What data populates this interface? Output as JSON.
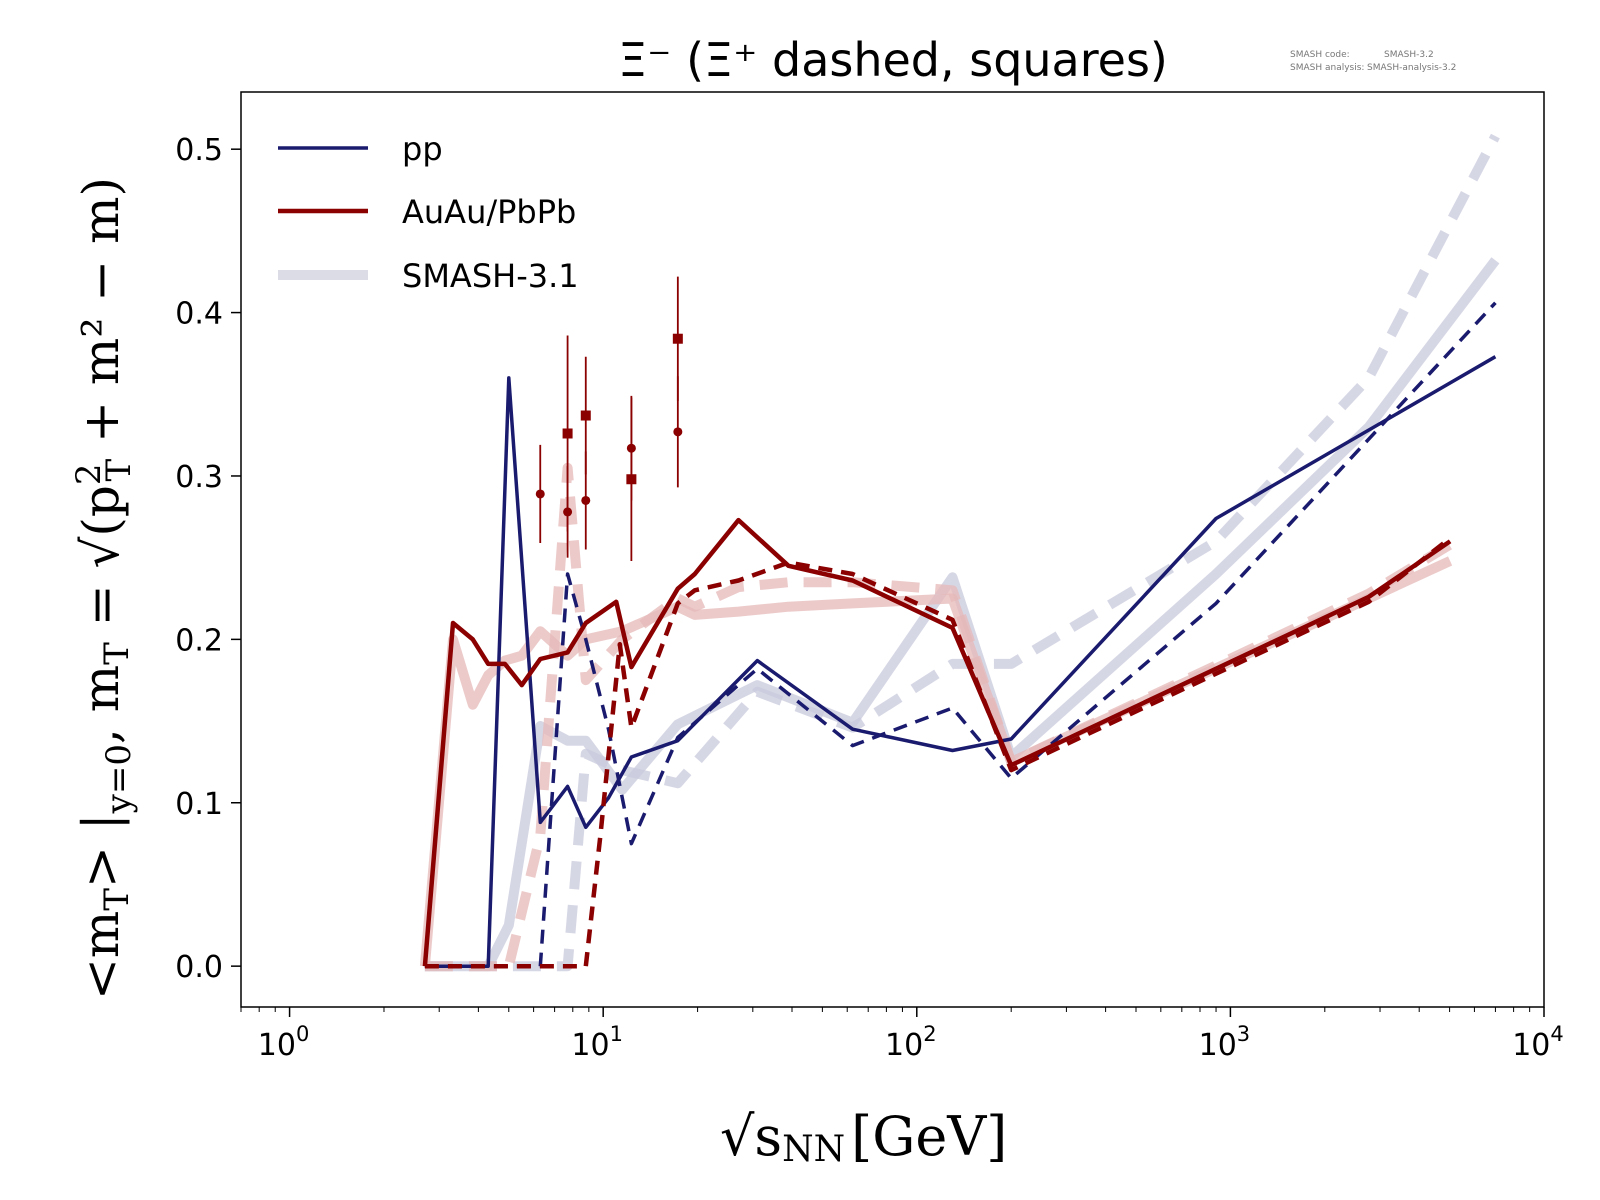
{
  "chart_data": {
    "type": "line",
    "title": "Ξ⁻ (Ξ⁺ dashed, squares)",
    "xlabel": {
      "main": "√s",
      "sub": "NN",
      "unit": "[GeV]"
    },
    "ylabel": {
      "main": "<m",
      "sub": "T",
      "rest": "> |",
      "sub2": "y=0",
      "def": ", m",
      "sub3": "T",
      "eq": " = √(p",
      "sup4": "2",
      "sub4": "T",
      "end": " + m² − m)"
    },
    "x_scale": "log",
    "xlim": [
      0.7,
      10000
    ],
    "ylim": [
      -0.025,
      0.535
    ],
    "x_ticks": [
      {
        "value": 1,
        "base": "10",
        "exp": "0"
      },
      {
        "value": 10,
        "base": "10",
        "exp": "1"
      },
      {
        "value": 100,
        "base": "10",
        "exp": "2"
      },
      {
        "value": 1000,
        "base": "10",
        "exp": "3"
      },
      {
        "value": 10000,
        "base": "10",
        "exp": "4"
      }
    ],
    "y_ticks": [
      {
        "value": 0.0,
        "label": "0.0"
      },
      {
        "value": 0.1,
        "label": "0.1"
      },
      {
        "value": 0.2,
        "label": "0.2"
      },
      {
        "value": 0.3,
        "label": "0.3"
      },
      {
        "value": 0.4,
        "label": "0.4"
      },
      {
        "value": 0.5,
        "label": "0.5"
      }
    ],
    "grid": false,
    "legend_position": "top-left",
    "legend": [
      {
        "label": "pp",
        "color": "#1a1a6e",
        "style": "solid"
      },
      {
        "label": "AuAu/PbPb",
        "color": "#8b0000",
        "style": "solid"
      },
      {
        "label": "SMASH-3.1",
        "color": "#dcdce6",
        "style": "thick-solid"
      }
    ],
    "colors": {
      "pp": "#1a1a6e",
      "aa": "#8b0000",
      "smash_pp": "#c8c9dc",
      "smash_aa": "#e6b8b8",
      "marker": "#8b0000"
    },
    "series": [
      {
        "name": "pp",
        "style": "solid",
        "group": "pp",
        "kind": "smash",
        "x": [
          2.7,
          4.3,
          5.0,
          6.3,
          7.7,
          8.8,
          11.5,
          17.3,
          31.0,
          62.4,
          130,
          200,
          900,
          2760,
          7000
        ],
        "y": [
          0.0,
          0.0,
          0.025,
          0.147,
          0.138,
          0.138,
          0.108,
          0.148,
          0.172,
          0.149,
          0.238,
          0.128,
          0.24,
          0.33,
          0.432
        ]
      },
      {
        "name": "",
        "style": "dashed",
        "group": "pp",
        "kind": "smash",
        "x": [
          2.7,
          4.3,
          5.0,
          6.3,
          7.7,
          8.8,
          11.5,
          17.3,
          31.0,
          62.4,
          130,
          200,
          900,
          2760,
          7000
        ],
        "y": [
          0.0,
          0.0,
          0.0,
          0.0,
          0.0,
          0.13,
          0.12,
          0.112,
          0.168,
          0.146,
          0.185,
          0.185,
          0.26,
          0.36,
          0.508
        ]
      },
      {
        "name": "AuAu/PbPb",
        "style": "solid",
        "group": "aa",
        "kind": "smash",
        "x": [
          2.7,
          3.32,
          3.84,
          4.3,
          4.86,
          5.5,
          6.3,
          7.7,
          8.8,
          11.5,
          17.3,
          19.6,
          27,
          39,
          62.4,
          130,
          200,
          2760,
          5020
        ],
        "y": [
          0.0,
          0.2,
          0.16,
          0.178,
          0.187,
          0.19,
          0.205,
          0.19,
          0.2,
          0.205,
          0.22,
          0.215,
          0.217,
          0.22,
          0.222,
          0.225,
          0.125,
          0.225,
          0.248
        ]
      },
      {
        "name": "",
        "style": "dashed",
        "group": "aa",
        "kind": "smash",
        "x": [
          2.7,
          4.3,
          5.0,
          6.3,
          7.7,
          8.8,
          11.5,
          17.3,
          19.6,
          27,
          39,
          62.4,
          130,
          200,
          2760,
          5020
        ],
        "y": [
          0.0,
          0.0,
          0.0,
          0.08,
          0.305,
          0.175,
          0.2,
          0.225,
          0.22,
          0.232,
          0.235,
          0.235,
          0.23,
          0.125,
          0.228,
          0.258
        ]
      },
      {
        "name": "pp",
        "style": "solid",
        "group": "pp",
        "kind": "data",
        "x": [
          2.7,
          4.3,
          5.0,
          6.3,
          7.7,
          8.8,
          10.4,
          12.3,
          17.3,
          31.0,
          62.4,
          130,
          200,
          900,
          7000
        ],
        "y": [
          0.0,
          0.0,
          0.36,
          0.088,
          0.11,
          0.085,
          0.103,
          0.128,
          0.138,
          0.187,
          0.145,
          0.132,
          0.139,
          0.274,
          0.373
        ]
      },
      {
        "name": "",
        "style": "dashed",
        "group": "pp",
        "kind": "data",
        "x": [
          2.7,
          4.3,
          6.3,
          7.7,
          8.8,
          10.4,
          12.3,
          17.3,
          31.0,
          62.4,
          130,
          200,
          900,
          7000
        ],
        "y": [
          0.0,
          0.0,
          0.0,
          0.24,
          0.2,
          0.145,
          0.075,
          0.14,
          0.182,
          0.135,
          0.158,
          0.115,
          0.222,
          0.406
        ]
      },
      {
        "name": "AuAu/PbPb",
        "style": "solid",
        "group": "aa",
        "kind": "data",
        "x": [
          2.7,
          3.32,
          3.84,
          4.3,
          4.86,
          5.5,
          6.3,
          7.7,
          8.8,
          11.0,
          12.3,
          17.3,
          19.6,
          27,
          39,
          62.4,
          130,
          200,
          2760,
          5020
        ],
        "y": [
          0.0,
          0.21,
          0.2,
          0.185,
          0.185,
          0.172,
          0.188,
          0.192,
          0.21,
          0.223,
          0.183,
          0.231,
          0.24,
          0.273,
          0.245,
          0.236,
          0.207,
          0.123,
          0.226,
          0.26
        ]
      },
      {
        "name": "",
        "style": "dashed",
        "group": "aa",
        "kind": "data",
        "x": [
          2.7,
          4.3,
          5.0,
          6.3,
          7.7,
          8.8,
          9.8,
          11.3,
          12.3,
          17.3,
          19.6,
          27,
          39,
          62.4,
          130,
          200,
          2760,
          5020
        ],
        "y": [
          0.0,
          0.0,
          0.0,
          0.0,
          0.0,
          0.0,
          0.08,
          0.197,
          0.146,
          0.222,
          0.23,
          0.236,
          0.247,
          0.24,
          0.212,
          0.12,
          0.223,
          0.262
        ]
      }
    ],
    "markers": [
      {
        "shape": "circle",
        "x": 6.3,
        "y": 0.289,
        "err": 0.03
      },
      {
        "shape": "circle",
        "x": 7.7,
        "y": 0.278,
        "err": 0.028
      },
      {
        "shape": "circle",
        "x": 8.8,
        "y": 0.285,
        "err": 0.03
      },
      {
        "shape": "circle",
        "x": 12.3,
        "y": 0.317,
        "err": 0.032
      },
      {
        "shape": "circle",
        "x": 17.3,
        "y": 0.327,
        "err": 0.034
      },
      {
        "shape": "square",
        "x": 7.7,
        "y": 0.326,
        "err": 0.06
      },
      {
        "shape": "square",
        "x": 8.8,
        "y": 0.337,
        "err": 0.036
      },
      {
        "shape": "square",
        "x": 12.3,
        "y": 0.298,
        "err": 0.05
      },
      {
        "shape": "square",
        "x": 17.3,
        "y": 0.384,
        "err": 0.038
      }
    ]
  },
  "meta": {
    "code_label": "SMASH code:",
    "code_value": "SMASH-3.2",
    "analysis_label": "SMASH analysis:",
    "analysis_value": "SMASH-analysis-3.2"
  }
}
